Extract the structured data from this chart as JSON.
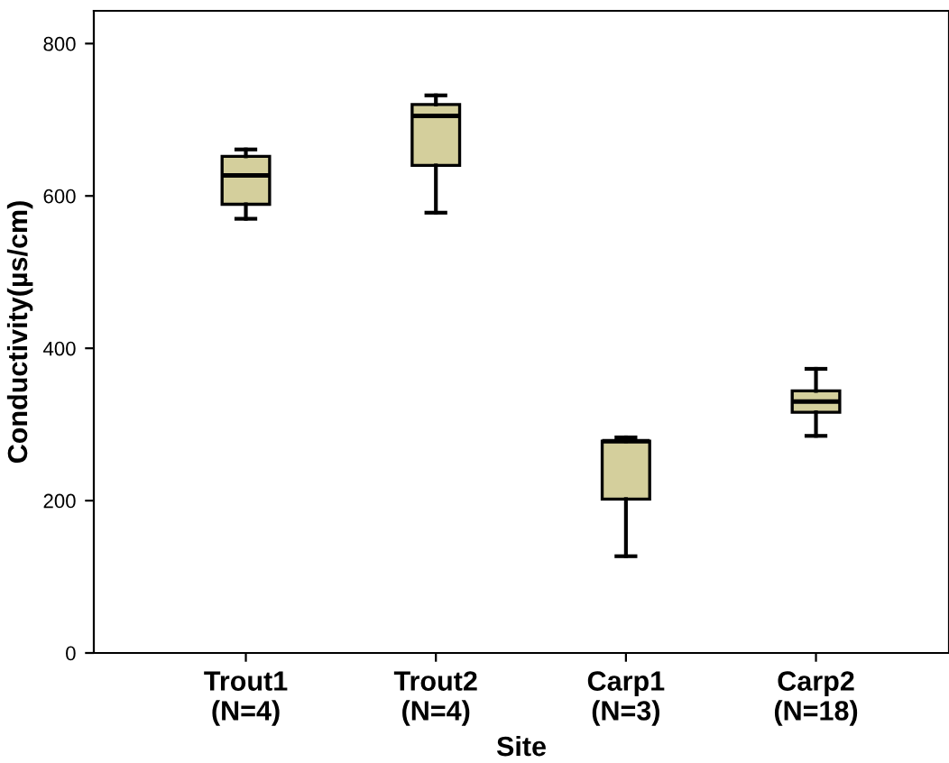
{
  "chart_data": {
    "type": "box",
    "xlabel": "Site",
    "ylabel": "Conductivity(µs/cm)",
    "categories": [
      "Trout1\n(N=4)",
      "Trout2\n(N=4)",
      "Carp1\n(N=3)",
      "Carp2\n(N=18)"
    ],
    "color": "#d4cf9c",
    "boxes": [
      {
        "low": 570,
        "q1": 589,
        "median": 627,
        "q3": 652,
        "high": 661
      },
      {
        "low": 578,
        "q1": 640,
        "median": 705,
        "q3": 720,
        "high": 732
      },
      {
        "low": 127,
        "q1": 202,
        "median": 278,
        "q3": 278,
        "high": 283
      },
      {
        "low": 285,
        "q1": 316,
        "median": 330,
        "q3": 344,
        "high": 373
      }
    ],
    "ylim": [
      0,
      843
    ],
    "yticks": [
      0,
      200,
      400,
      600,
      800
    ],
    "grid": false
  }
}
